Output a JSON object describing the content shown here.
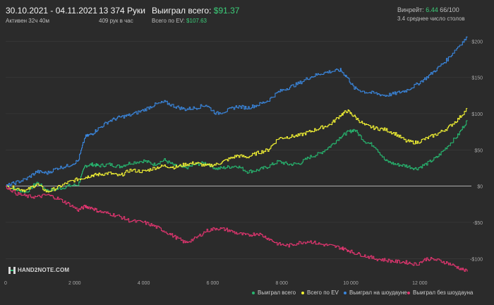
{
  "header": {
    "date_range": "30.10.2021 - 04.11.2021",
    "active": "Активен 32ч 40м",
    "hands": "13 374 Руки",
    "hands_per_hour": "409 рук в час",
    "won_total_label": "Выиграл всего:",
    "won_total_value": "$91.37",
    "ev_total_label": "Всего по EV:",
    "ev_total_value": "$107.63",
    "winrate_label": "Винрейт:",
    "winrate_value": "6.44",
    "winrate_suffix": "66/100",
    "avg_tables": "3.4 среднее число столов"
  },
  "logo": {
    "text": "HAND2NOTE.COM"
  },
  "colors": {
    "won_total": "#27b56f",
    "ev_total": "#f2f233",
    "showdown": "#3a86dd",
    "non_showdown": "#e0356f",
    "zero_line": "#d9d9d9",
    "background": "#2b2b2b"
  },
  "chart_data": {
    "type": "line",
    "xlabel": "",
    "ylabel": "",
    "xlim": [
      0,
      13374
    ],
    "ylim": [
      -125,
      210
    ],
    "x_ticks": [
      0,
      2000,
      4000,
      6000,
      8000,
      10000,
      12000
    ],
    "x_tick_labels": [
      "0",
      "2 000",
      "4 000",
      "6 000",
      "8 000",
      "10 000",
      "12 000"
    ],
    "y_ticks": [
      -100,
      -50,
      0,
      50,
      100,
      150,
      200
    ],
    "y_tick_labels": [
      "-$100",
      "-$50",
      "$0",
      "$50",
      "$100",
      "$150",
      "$200"
    ],
    "grid": true,
    "legend_position": "bottom-right",
    "series": [
      {
        "name": "Выиграл всего",
        "color": "#27b56f",
        "x": [
          0,
          300,
          600,
          900,
          1200,
          1500,
          1800,
          2100,
          2300,
          2500,
          2700,
          3000,
          3300,
          3600,
          4000,
          4300,
          4600,
          4900,
          5200,
          5500,
          5800,
          6100,
          6400,
          6700,
          7000,
          7300,
          7600,
          7900,
          8200,
          8500,
          8800,
          9100,
          9400,
          9700,
          9900,
          10100,
          10400,
          10700,
          11000,
          11300,
          11600,
          11900,
          12200,
          12500,
          12800,
          13100,
          13374
        ],
        "y": [
          0,
          -5,
          -8,
          5,
          -6,
          -4,
          0,
          2,
          28,
          30,
          28,
          30,
          27,
          32,
          35,
          30,
          36,
          28,
          25,
          30,
          32,
          24,
          26,
          28,
          20,
          22,
          27,
          34,
          30,
          31,
          40,
          45,
          55,
          68,
          74,
          78,
          62,
          55,
          35,
          30,
          28,
          24,
          31,
          40,
          55,
          70,
          91
        ]
      },
      {
        "name": "Всего по EV",
        "color": "#f2f233",
        "x": [
          0,
          300,
          600,
          900,
          1200,
          1500,
          1800,
          2100,
          2300,
          2500,
          2700,
          3000,
          3300,
          3600,
          4000,
          4300,
          4600,
          4900,
          5200,
          5500,
          5800,
          6100,
          6400,
          6700,
          7000,
          7300,
          7600,
          7900,
          8200,
          8500,
          8800,
          9100,
          9400,
          9700,
          9900,
          10100,
          10400,
          10700,
          11000,
          11300,
          11600,
          11900,
          12200,
          12500,
          12800,
          13100,
          13374
        ],
        "y": [
          0,
          -3,
          -6,
          3,
          -8,
          -2,
          5,
          10,
          12,
          15,
          16,
          18,
          14,
          22,
          20,
          25,
          28,
          26,
          30,
          32,
          28,
          30,
          36,
          42,
          40,
          46,
          50,
          66,
          68,
          70,
          75,
          80,
          85,
          98,
          104,
          96,
          84,
          80,
          78,
          72,
          62,
          60,
          66,
          72,
          80,
          92,
          107
        ]
      },
      {
        "name": "Выиграл на шоудауне",
        "color": "#3a86dd",
        "x": [
          0,
          300,
          600,
          900,
          1200,
          1500,
          1800,
          2100,
          2300,
          2500,
          2700,
          3000,
          3300,
          3600,
          4000,
          4300,
          4600,
          4900,
          5200,
          5500,
          5800,
          6100,
          6400,
          6700,
          7000,
          7300,
          7600,
          7900,
          8200,
          8500,
          8800,
          9100,
          9400,
          9700,
          9900,
          10100,
          10400,
          10700,
          11000,
          11300,
          11600,
          11900,
          12200,
          12500,
          12800,
          13100,
          13374
        ],
        "y": [
          0,
          5,
          10,
          20,
          18,
          25,
          28,
          35,
          68,
          72,
          80,
          90,
          95,
          98,
          105,
          112,
          116,
          110,
          106,
          108,
          112,
          100,
          104,
          110,
          108,
          112,
          118,
          130,
          136,
          142,
          150,
          155,
          158,
          160,
          150,
          135,
          130,
          128,
          125,
          128,
          132,
          140,
          150,
          162,
          175,
          192,
          205
        ]
      },
      {
        "name": "Выиграл без шоудауна",
        "color": "#e0356f",
        "x": [
          0,
          300,
          600,
          900,
          1200,
          1500,
          1800,
          2100,
          2300,
          2500,
          2700,
          3000,
          3300,
          3600,
          4000,
          4300,
          4600,
          4900,
          5200,
          5500,
          5800,
          6100,
          6400,
          6700,
          7000,
          7300,
          7600,
          7900,
          8200,
          8500,
          8800,
          9100,
          9400,
          9700,
          9900,
          10100,
          10400,
          10700,
          11000,
          11300,
          11600,
          11900,
          12200,
          12500,
          12800,
          13100,
          13374
        ],
        "y": [
          0,
          -10,
          -14,
          -15,
          -12,
          -17,
          -24,
          -33,
          -28,
          -30,
          -35,
          -38,
          -42,
          -48,
          -50,
          -55,
          -62,
          -70,
          -78,
          -72,
          -62,
          -58,
          -60,
          -65,
          -68,
          -65,
          -72,
          -80,
          -82,
          -78,
          -76,
          -80,
          -82,
          -85,
          -88,
          -92,
          -96,
          -100,
          -102,
          -104,
          -105,
          -108,
          -100,
          -102,
          -106,
          -112,
          -118
        ]
      }
    ]
  }
}
